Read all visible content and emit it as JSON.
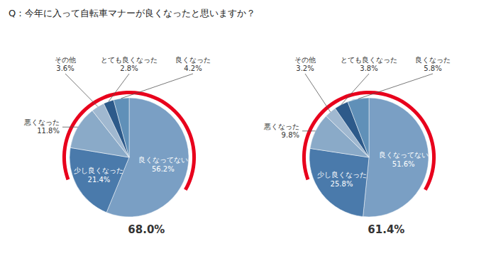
{
  "chart_data": [
    {
      "type": "pie",
      "title": "Q：今年に入って自転車マナーが良くなったと思いますか？",
      "categories": [
        "良くなってない",
        "少し良くなった",
        "悪くなった",
        "その他",
        "とても良くなった",
        "良くなった"
      ],
      "values": [
        56.2,
        21.4,
        11.8,
        3.6,
        2.8,
        4.2
      ],
      "value_labels": [
        "56.2%",
        "21.4%",
        "11.8%",
        "3.6%",
        "2.8%",
        "4.2%"
      ],
      "colors": [
        "#7a9fc4",
        "#4a7aab",
        "#8aaac8",
        "#a0b8d0",
        "#2d5a8a",
        "#6090b8"
      ],
      "data_labels": true,
      "color": "#e8001c",
      "annotations": [
        "68.0%"
      ]
    },
    {
      "type": "pie",
      "categories": [
        "良くなってない",
        "少し良くなった",
        "悪くなった",
        "その他",
        "とても良くなった",
        "良くなった"
      ],
      "values": [
        51.6,
        25.8,
        9.8,
        3.2,
        3.8,
        5.8
      ],
      "value_labels": [
        "51.6%",
        "25.8%",
        "9.8%",
        "3.2%",
        "3.8%",
        "5.8%"
      ],
      "colors": [
        "#7a9fc4",
        "#4a7aab",
        "#8aaac8",
        "#a0b8d0",
        "#2d5a8a",
        "#6090b8"
      ],
      "data_labels": true,
      "color": "#e8001c",
      "annotations": [
        "61.4%"
      ]
    }
  ]
}
